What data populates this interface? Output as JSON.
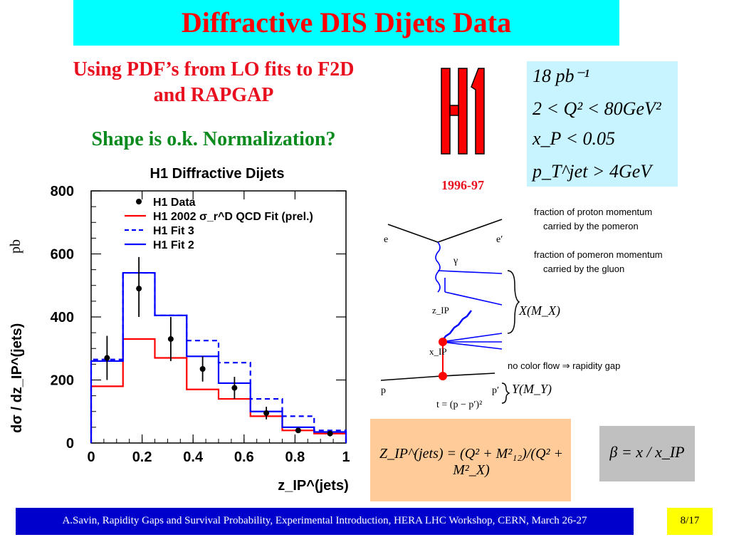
{
  "slide": {
    "title": "Diffractive DIS Dijets Data",
    "subtitle_line1": "Using PDF’s from LO fits to F2D",
    "subtitle_line2": "and  RAPGAP",
    "shape_note": "Shape is o.k. Normalization?",
    "h1_logo_text": "H1",
    "years": "1996-97",
    "footer": "A.Savin, Rapidity Gaps and Survival Probability, Experimental Introduction, HERA LHC Workshop, CERN, March 26-27",
    "page": "8/17"
  },
  "kinematics": {
    "lumi": "18 pb⁻¹",
    "q2_range": "2 < Q² < 80GeV²",
    "xp_cut": "x_P < 0.05",
    "pt_cut": "p_T^jet > 4GeV"
  },
  "diagram": {
    "electron_in": "e",
    "electron_out": "e′",
    "photon": "γ",
    "zp_label": "z_IP",
    "xp_label": "x_IP",
    "proton_in": "p",
    "proton_out": "p′",
    "t_def": "t = (p − p′)²",
    "x_system": "X(M_X)",
    "y_system": "Y(M_Y)",
    "gap_note": "no color flow ⇒ rapidity gap",
    "xp_desc_1": "fraction of proton momentum",
    "xp_desc_2": "carried by the pomeron",
    "zp_desc_1": "fraction of pomeron momentum",
    "zp_desc_2": "carried by the gluon"
  },
  "formulas": {
    "z_ip": "Z_IP^(jets) = (Q² + M²₁₂)/(Q² + M²_X)",
    "beta": "β = x / x_IP"
  },
  "colors": {
    "title_bg": "#00ffff",
    "title_text": "#ff0000",
    "green_text": "#0b8a1e",
    "data_marker": "#000000",
    "qcd_fit": "#ff0000",
    "fit3": "#0000ff",
    "fit2": "#0000ff",
    "footer_bg": "#0000cc",
    "page_bg": "#ffff00"
  },
  "chart_data": {
    "type": "line",
    "title": "H1 Diffractive Dijets",
    "xlabel": "z_IP^(jets)",
    "ylabel": "dσ / dz_IP^(jets)",
    "yunit": "pb",
    "xlim": [
      0,
      1
    ],
    "ylim": [
      0,
      800
    ],
    "xticks": [
      "0",
      "0.2",
      "0.4",
      "0.6",
      "0.8",
      "1"
    ],
    "yticks": [
      "0",
      "200",
      "400",
      "600",
      "800"
    ],
    "bin_edges": [
      0,
      0.125,
      0.25,
      0.375,
      0.5,
      0.625,
      0.75,
      0.875,
      1.0
    ],
    "legend_position": "top-right",
    "data": {
      "name": "H1 Data",
      "x": [
        0.0625,
        0.1875,
        0.3125,
        0.4375,
        0.5625,
        0.6875,
        0.8125,
        0.9375
      ],
      "y": [
        270,
        490,
        330,
        235,
        175,
        95,
        40,
        30
      ],
      "err_low": [
        70,
        90,
        70,
        40,
        35,
        20,
        8,
        8
      ],
      "err_high": [
        70,
        100,
        70,
        40,
        35,
        20,
        8,
        8
      ]
    },
    "series": [
      {
        "name": "H1 2002 σ_r^D QCD Fit (prel.)",
        "style": "solid",
        "color": "#ff0000",
        "values": [
          180,
          330,
          270,
          170,
          140,
          85,
          40,
          30
        ]
      },
      {
        "name": "H1 Fit 3",
        "style": "dashed",
        "color": "#0000ff",
        "values": [
          265,
          540,
          405,
          325,
          255,
          140,
          85,
          40
        ]
      },
      {
        "name": "H1 Fit 2",
        "style": "solid",
        "color": "#0000ff",
        "values": [
          260,
          540,
          405,
          275,
          190,
          100,
          50,
          35
        ]
      }
    ]
  }
}
